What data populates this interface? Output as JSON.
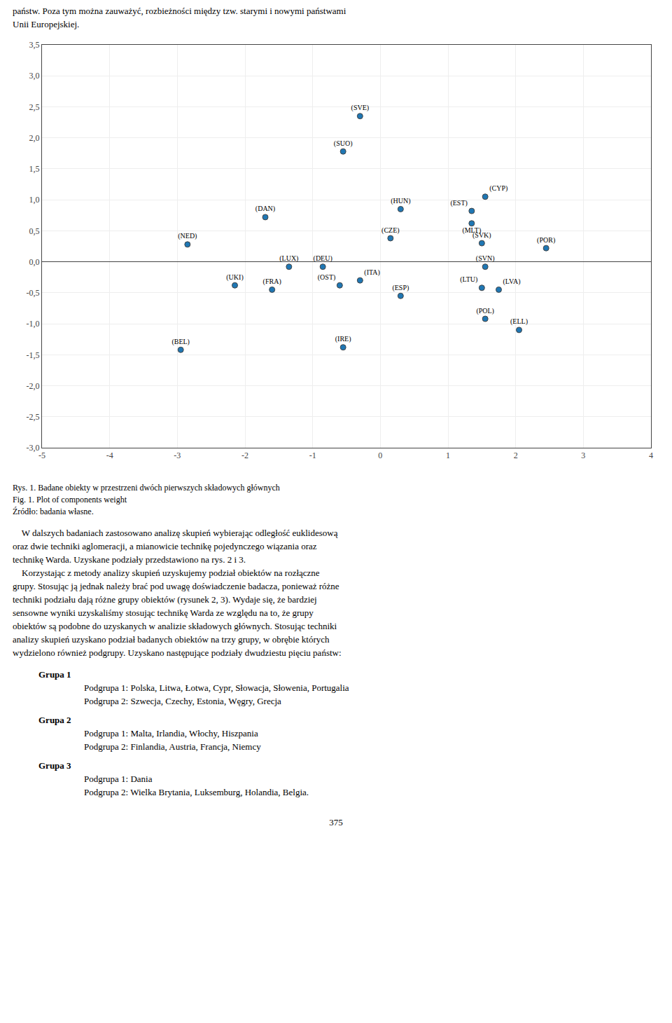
{
  "chart_data": {
    "type": "scatter",
    "x": [
      -0.3,
      -0.55,
      1.55,
      0.3,
      1.35,
      1.35,
      -1.7,
      0.15,
      1.5,
      -2.85,
      2.45,
      -1.35,
      -0.85,
      1.55,
      -2.15,
      -1.6,
      -0.6,
      -0.3,
      1.5,
      1.75,
      0.3,
      1.55,
      2.05,
      -2.95,
      -0.55
    ],
    "values": [
      2.35,
      1.78,
      1.05,
      0.85,
      0.82,
      0.62,
      0.72,
      0.38,
      0.3,
      0.28,
      0.22,
      -0.08,
      -0.08,
      -0.08,
      -0.38,
      -0.45,
      -0.38,
      -0.3,
      -0.42,
      -0.45,
      -0.55,
      -0.92,
      -1.1,
      -1.42,
      -1.38
    ],
    "labels": [
      "(SVE)",
      "(SUO)",
      "(CYP)",
      "(HUN)",
      "(EST)",
      "(MLT)",
      "(DAN)",
      "(CZE)",
      "(SVK)",
      "(NED)",
      "(POR)",
      "(LUX)",
      "(DEU)",
      "(SVN)",
      "(UKI)",
      "(FRA)",
      "(OST)",
      "(ITA)",
      "(LTU)",
      "(LVA)",
      "(ESP)",
      "(POL)",
      "(ELL)",
      "(BEL)",
      "(IRE)"
    ],
    "xlim": [
      -5,
      4
    ],
    "ylim": [
      -3.0,
      3.5
    ],
    "xticks": [
      -5,
      -4,
      -3,
      -2,
      -1,
      0,
      1,
      2,
      3,
      4
    ],
    "yticks": [
      {
        "value": -3.0,
        "label": "-3,0"
      },
      {
        "value": -2.5,
        "label": "-2,5"
      },
      {
        "value": -2.0,
        "label": "-2,0"
      },
      {
        "value": -1.5,
        "label": "-1,5"
      },
      {
        "value": -1.0,
        "label": "-1,0"
      },
      {
        "value": -0.5,
        "label": "-0,5"
      },
      {
        "value": 0.0,
        "label": "0,0"
      },
      {
        "value": 0.5,
        "label": "0,5"
      },
      {
        "value": 1.0,
        "label": "1,0"
      },
      {
        "value": 1.5,
        "label": "1,5"
      },
      {
        "value": 2.0,
        "label": "2,0"
      },
      {
        "value": 2.5,
        "label": "2,5"
      },
      {
        "value": 3.0,
        "label": "3,0"
      },
      {
        "value": 3.5,
        "label": "3,5"
      }
    ],
    "grid": true,
    "marker": "circle",
    "caption": [
      "Rys. 1. Badane obiekty w przestrzeni dwóch pierwszych składowych głównych",
      "Fig. 1. Plot of components weight",
      "Źródło: badania własne."
    ]
  },
  "text_before": [
    "państw. Poza tym można zauważyć, rozbieżności między tzw. starymi i nowymi państwami",
    "Unii Europejskiej."
  ],
  "text_after": [
    "    W dalszych badaniach zastosowano analizę skupień wybierając odległość euklidesową",
    "oraz dwie techniki aglomeracji, a mianowicie technikę pojedynczego wiązania oraz",
    "technikę Warda. Uzyskane podziały przedstawiono na rys. 2 i 3.",
    "    Korzystając z metody analizy skupień uzyskujemy podział obiektów na rozłączne",
    "grupy. Stosując ją jednak należy brać pod uwagę doświadczenie badacza, ponieważ różne",
    "techniki podziału dają różne grupy obiektów (rysunek 2, 3). Wydaje się, że bardziej",
    "sensowne wyniki uzyskaliśmy stosując technikę Warda ze względu na to, że grupy",
    "obiektów są podobne do uzyskanych w analizie składowych głównych. Stosując techniki",
    "analizy skupień uzyskano podział badanych obiektów na trzy grupy, w obrębie których",
    "wydzielono również podgrupy. Uzyskano następujące podziały dwudziestu pięciu państw:"
  ],
  "groups": [
    {
      "header": "Grupa 1",
      "subgroups": [
        "Podgrupa 1: Polska, Litwa, Łotwa, Cypr, Słowacja, Słowenia, Portugalia",
        "Podgrupa 2: Szwecja, Czechy, Estonia, Węgry, Grecja"
      ]
    },
    {
      "header": "Grupa 2",
      "subgroups": [
        "Podgrupa 1: Malta, Irlandia, Włochy, Hiszpania",
        "Podgrupa 2: Finlandia, Austria, Francja, Niemcy"
      ]
    },
    {
      "header": "Grupa 3",
      "subgroups": [
        "Podgrupa 1: Dania",
        "Podgrupa 2: Wielka Brytania, Luksemburg, Holandia, Belgia."
      ]
    }
  ],
  "page_number": "375"
}
